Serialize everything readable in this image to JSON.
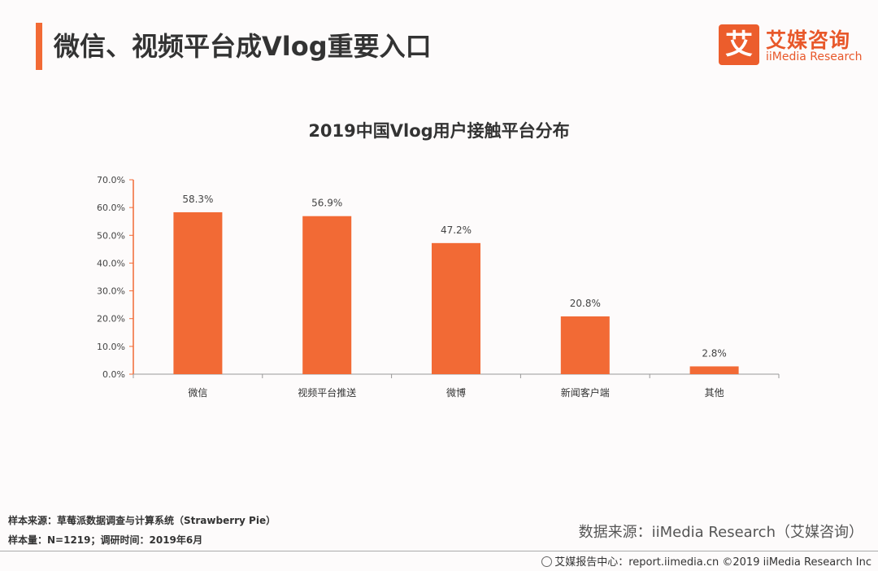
{
  "header": {
    "title": "微信、视频平台成Vlog重要入口",
    "accent_color": "#f26a35"
  },
  "logo": {
    "mark": "艾",
    "cn": "艾媒咨询",
    "en": "iiMedia Research",
    "color": "#e8582a"
  },
  "chart_data": {
    "type": "bar",
    "title": "2019中国Vlog用户接触平台分布",
    "categories": [
      "微信",
      "视频平台推送",
      "微博",
      "新闻客户端",
      "其他"
    ],
    "values": [
      58.3,
      56.9,
      47.2,
      20.8,
      2.8
    ],
    "value_labels": [
      "58.3%",
      "56.9%",
      "47.2%",
      "20.8%",
      "2.8%"
    ],
    "yticks": [
      "0.0%",
      "10.0%",
      "20.0%",
      "30.0%",
      "40.0%",
      "50.0%",
      "60.0%",
      "70.0%"
    ],
    "ylim": [
      0,
      70
    ],
    "xlabel": "",
    "ylabel": "",
    "grid": false,
    "bar_color": "#f26a35"
  },
  "footer": {
    "sample_source": "样本来源：草莓派数据调查与计算系统（Strawberry Pie）",
    "sample_size": "样本量：N=1219；调研时间：2019年6月",
    "data_source": "数据来源：iiMedia Research（艾媒咨询）",
    "bottom_line": "艾媒报告中心：report.iimedia.cn  ©2019  iiMedia Research Inc",
    "bottom_icon": "globe-icon"
  }
}
